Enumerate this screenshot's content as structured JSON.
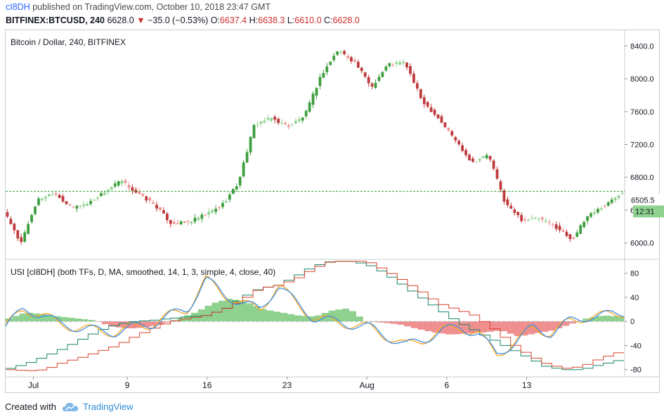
{
  "header": {
    "author": "cI8DH",
    "published_text": "published on TradingView.com, October 10, 2018 23:47 GMT",
    "symbol": "BITFINEX:BTCUSD, 240",
    "last": "6628.0",
    "change_arrow": "▼",
    "change": "−35.0 (−0.53%)",
    "o_label": "O:",
    "o_value": "6637.4",
    "h_label": "H:",
    "h_value": "6638.3",
    "l_label": "L:",
    "l_value": "6610.0",
    "c_label": "C:",
    "c_value": "6628.0"
  },
  "colors": {
    "up": "#3d9e3d",
    "down": "#c0393b",
    "up_faded": "#8fd18f",
    "down_faded": "#ef8f8f",
    "usi_line_blue": "#3f8fe0",
    "usi_line_orange": "#f5a623",
    "step_red": "#d9442c",
    "step_green": "#19856b",
    "price_line": "#2e9a2e"
  },
  "footer": {
    "created_with": "Created with",
    "brand": "TradingView",
    "logo_icon": "tradingview-cloud-icon"
  },
  "chart_data": [
    {
      "type": "candlestick",
      "title": "Bitcoin / Dollar, 240, BITFINEX",
      "y_ticks": [
        8400,
        8000,
        7600,
        7200,
        6800,
        6400,
        6000
      ],
      "y_tick_labels": [
        "8400.0",
        "8000.0",
        "7600.0",
        "7200.0",
        "6800.0",
        "6400.0",
        "6000.0"
      ],
      "ylim": [
        5800,
        8600
      ],
      "x_tick_labels": [
        "Jul",
        "9",
        "16",
        "23",
        "Aug",
        "6",
        "13"
      ],
      "x_tick_index": [
        8,
        35,
        58,
        81,
        104,
        127,
        150
      ],
      "last_price_label": "6505.5",
      "countdown_label": "12:31",
      "current_price": 6628,
      "key_closes": [
        6380,
        6000,
        6520,
        6620,
        6430,
        6480,
        6620,
        6760,
        6600,
        6470,
        6240,
        6250,
        6340,
        6450,
        6720,
        7450,
        7520,
        7420,
        7550,
        8050,
        8350,
        8200,
        7900,
        8180,
        8200,
        7740,
        7520,
        7260,
        6980,
        7080,
        6480,
        6280,
        6300,
        6200,
        6040,
        6350,
        6460,
        6628
      ]
    },
    {
      "type": "line",
      "title": "USI [cI8DH] (both TFs, D, MA, smoothed, 14, 1, 3, simple, 4, close, 40)",
      "y_ticks": [
        80,
        40,
        0,
        -40,
        -80
      ],
      "y_tick_labels": [
        "80",
        "40",
        "0",
        "-40",
        "-80"
      ],
      "ylim": [
        -92,
        103
      ],
      "series": [
        {
          "name": "",
          "key_values": [
            -8,
            20,
            12,
            -5,
            -10,
            -15,
            -18,
            -10,
            -5,
            10,
            20,
            70,
            45,
            30,
            20,
            60,
            30,
            5,
            0,
            -5,
            -10,
            -25,
            -40,
            -30,
            -15,
            -10,
            -20,
            -55,
            -35,
            -10,
            -20,
            0,
            8,
            10,
            15
          ]
        },
        {
          "name": "",
          "key_values": [
            -78,
            -70,
            -58,
            -45,
            -30,
            -15,
            -5,
            0,
            2,
            5,
            8,
            10,
            20,
            40,
            55,
            60,
            75,
            92,
            100,
            100,
            95,
            80,
            60,
            40,
            20,
            0,
            -15,
            -30,
            -45,
            -60,
            -75,
            -80,
            -80,
            -72,
            -65
          ]
        },
        {
          "name": "",
          "key_values": [
            -80,
            -82,
            -80,
            -68,
            -60,
            -50,
            -40,
            -25,
            -12,
            0,
            5,
            10,
            20,
            35,
            55,
            60,
            70,
            88,
            100,
            100,
            100,
            85,
            68,
            50,
            30,
            20,
            10,
            -10,
            -35,
            -55,
            -70,
            -78,
            -75,
            -62,
            -52
          ]
        }
      ],
      "histogram_key_values": [
        5,
        15,
        12,
        8,
        5,
        2,
        -8,
        -12,
        -10,
        -5,
        5,
        15,
        30,
        38,
        32,
        20,
        15,
        10,
        8,
        18,
        22,
        0,
        -2,
        -5,
        -12,
        -18,
        -22,
        -20,
        -18,
        -15,
        -25,
        -20,
        -15,
        -5,
        5,
        10,
        8
      ]
    }
  ]
}
